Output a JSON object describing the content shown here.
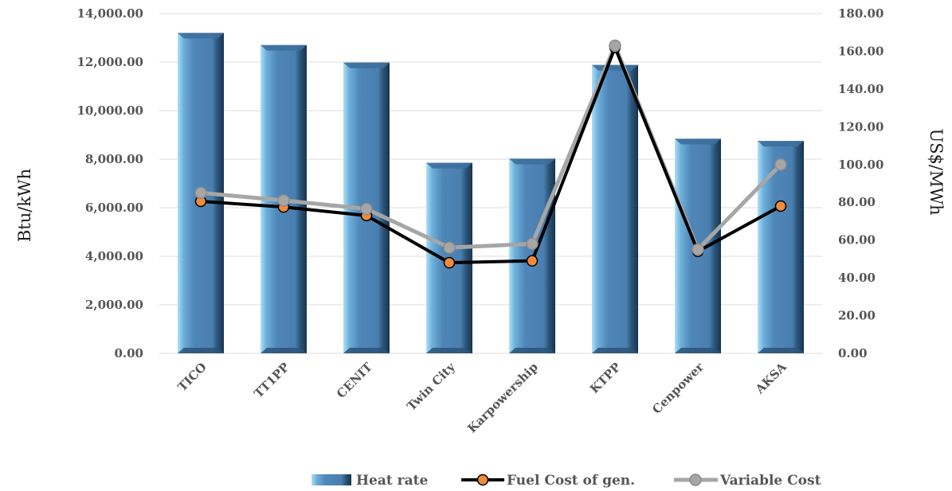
{
  "chart_data": {
    "type": "bar",
    "categories": [
      "TICO",
      "TT1PP",
      "CENIT",
      "Twin City",
      "Karpowership",
      "KTPP",
      "Cenpower",
      "AKSA"
    ],
    "series": [
      {
        "name": "Heat rate",
        "type": "bar",
        "axis": "left",
        "values": [
          13200,
          12700,
          11980,
          7850,
          8020,
          11880,
          8840,
          8750
        ]
      },
      {
        "name": "Fuel Cost of gen.",
        "type": "line",
        "axis": "right",
        "values": [
          80.5,
          77.5,
          73,
          48,
          49,
          162,
          54,
          78
        ]
      },
      {
        "name": "Variable Cost",
        "type": "line",
        "axis": "right",
        "values": [
          85,
          81,
          76.5,
          56,
          58,
          163,
          55,
          100
        ]
      }
    ],
    "ylabel": "Btu/kWh",
    "y2label": "US$/MWh",
    "ylim": [
      0,
      14000
    ],
    "y2lim": [
      0,
      180
    ],
    "yticks": [
      "0.00",
      "2,000.00",
      "4,000.00",
      "6,000.00",
      "8,000.00",
      "10,000.00",
      "12,000.00",
      "14,000.00"
    ],
    "y2ticks": [
      "0.00",
      "20.00",
      "40.00",
      "60.00",
      "80.00",
      "100.00",
      "120.00",
      "140.00",
      "160.00",
      "180.00"
    ],
    "grid": true,
    "legend": "bottom",
    "colors": {
      "bar": "#4f86b8",
      "bar_light": "#aee0f7",
      "bar_dark": "#18344e",
      "fuel_line": "#000000",
      "fuel_marker": "#f08a3c",
      "variable_line": "#a6a6a6",
      "variable_marker": "#a6a6a6",
      "grid": "#dcdcdc"
    }
  }
}
